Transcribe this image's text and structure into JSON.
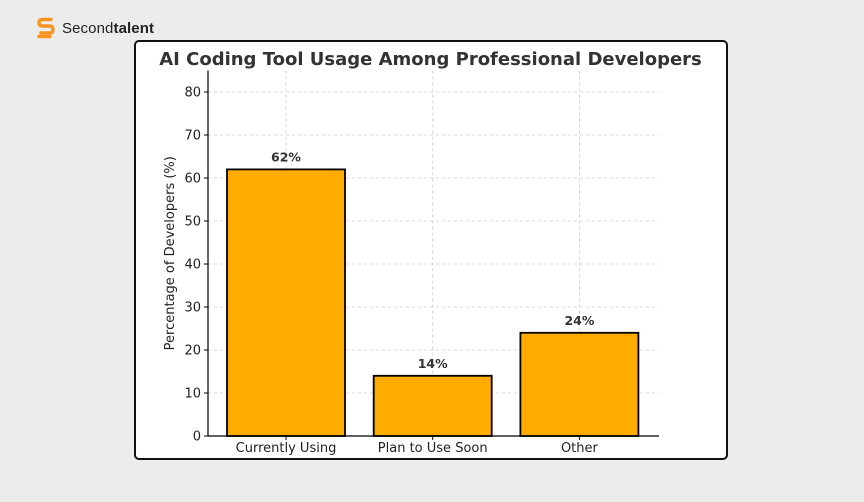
{
  "brand": {
    "name_regular": "Second",
    "name_bold": "talent",
    "logo_icon": "secondtalent-s-logo-icon",
    "color": "#f7931e"
  },
  "chart_data": {
    "type": "bar",
    "title": "AI Coding Tool Usage Among Professional Developers",
    "xlabel": "",
    "ylabel": "Percentage of Developers (%)",
    "categories": [
      "Currently Using",
      "Plan to Use Soon",
      "Other"
    ],
    "values": [
      62,
      14,
      24
    ],
    "value_labels": [
      "62%",
      "14%",
      "24%"
    ],
    "ylim": [
      0,
      85
    ],
    "yticks": [
      0,
      10,
      20,
      30,
      40,
      50,
      60,
      70,
      80
    ],
    "grid": true,
    "bar_color": "#ffab00",
    "bar_edge_color": "#000000"
  }
}
